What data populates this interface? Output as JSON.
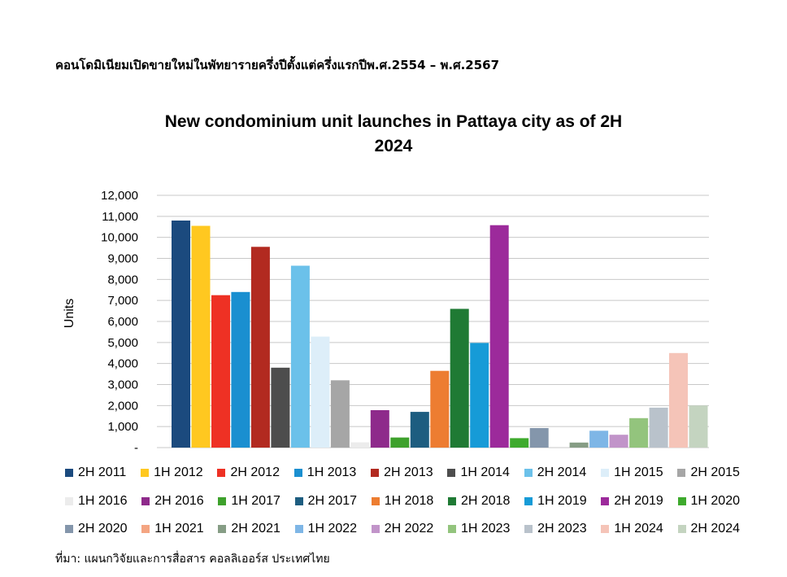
{
  "heading": "คอนโดมิเนียมเปิดขายใหม่ในพัทยารายครึ่งปีตั้งแต่ครึ่งแรกปีพ.ศ.2554 – พ.ศ.2567",
  "source": "ที่มา: แผนกวิจัยและการสื่อสาร คอลลิเออร์ส ประเทศไทย",
  "chart_data": {
    "type": "bar",
    "title_lines": [
      "New condominium unit launches in Pattaya city as of 2H",
      "2024"
    ],
    "ylabel": "Units",
    "ylim": [
      0,
      12000
    ],
    "grid": true,
    "legend_position": "bottom",
    "yticks": [
      {
        "value": 0,
        "label": "-"
      },
      {
        "value": 1000,
        "label": "1,000"
      },
      {
        "value": 2000,
        "label": "2,000"
      },
      {
        "value": 3000,
        "label": "3,000"
      },
      {
        "value": 4000,
        "label": "4,000"
      },
      {
        "value": 5000,
        "label": "5,000"
      },
      {
        "value": 6000,
        "label": "6,000"
      },
      {
        "value": 7000,
        "label": "7,000"
      },
      {
        "value": 8000,
        "label": "8,000"
      },
      {
        "value": 9000,
        "label": "9,000"
      },
      {
        "value": 10000,
        "label": "10,000"
      },
      {
        "value": 11000,
        "label": "11,000"
      },
      {
        "value": 12000,
        "label": "12,000"
      }
    ],
    "series": [
      {
        "name": "2H 2011",
        "value": 10800,
        "color": "#1b4a7e"
      },
      {
        "name": "1H 2012",
        "value": 10550,
        "color": "#ffc820"
      },
      {
        "name": "2H 2012",
        "value": 7250,
        "color": "#ee3124"
      },
      {
        "name": "1H 2013",
        "value": 7400,
        "color": "#1a8fd0"
      },
      {
        "name": "2H 2013",
        "value": 9550,
        "color": "#b22a20"
      },
      {
        "name": "1H 2014",
        "value": 3800,
        "color": "#4d4d4d"
      },
      {
        "name": "2H 2014",
        "value": 8650,
        "color": "#6bc1ea"
      },
      {
        "name": "1H 2015",
        "value": 5280,
        "color": "#ddeef9"
      },
      {
        "name": "2H 2015",
        "value": 3200,
        "color": "#a6a6a6"
      },
      {
        "name": "1H 2016",
        "value": 250,
        "color": "#ececec"
      },
      {
        "name": "2H 2016",
        "value": 1780,
        "color": "#8e2a8b"
      },
      {
        "name": "1H 2017",
        "value": 480,
        "color": "#3ea12c"
      },
      {
        "name": "2H 2017",
        "value": 1700,
        "color": "#1d5d80"
      },
      {
        "name": "1H 2018",
        "value": 3650,
        "color": "#ed7d31"
      },
      {
        "name": "2H 2018",
        "value": 6600,
        "color": "#1f7a34"
      },
      {
        "name": "1H 2019",
        "value": 4980,
        "color": "#169bd7"
      },
      {
        "name": "2H 2019",
        "value": 10580,
        "color": "#9c2a9b"
      },
      {
        "name": "1H 2020",
        "value": 450,
        "color": "#3eaa2d"
      },
      {
        "name": "2H 2020",
        "value": 930,
        "color": "#8496ab"
      },
      {
        "name": "1H 2021",
        "value": 0,
        "color": "#f4a582"
      },
      {
        "name": "2H 2021",
        "value": 240,
        "color": "#869d85"
      },
      {
        "name": "1H 2022",
        "value": 800,
        "color": "#7eb6e6"
      },
      {
        "name": "2H 2022",
        "value": 610,
        "color": "#c194c9"
      },
      {
        "name": "1H 2023",
        "value": 1400,
        "color": "#93c47d"
      },
      {
        "name": "2H 2023",
        "value": 1900,
        "color": "#b9c2cb"
      },
      {
        "name": "1H 2024",
        "value": 4500,
        "color": "#f5c4b8"
      },
      {
        "name": "2H 2024",
        "value": 2000,
        "color": "#c4d4c0"
      }
    ]
  }
}
